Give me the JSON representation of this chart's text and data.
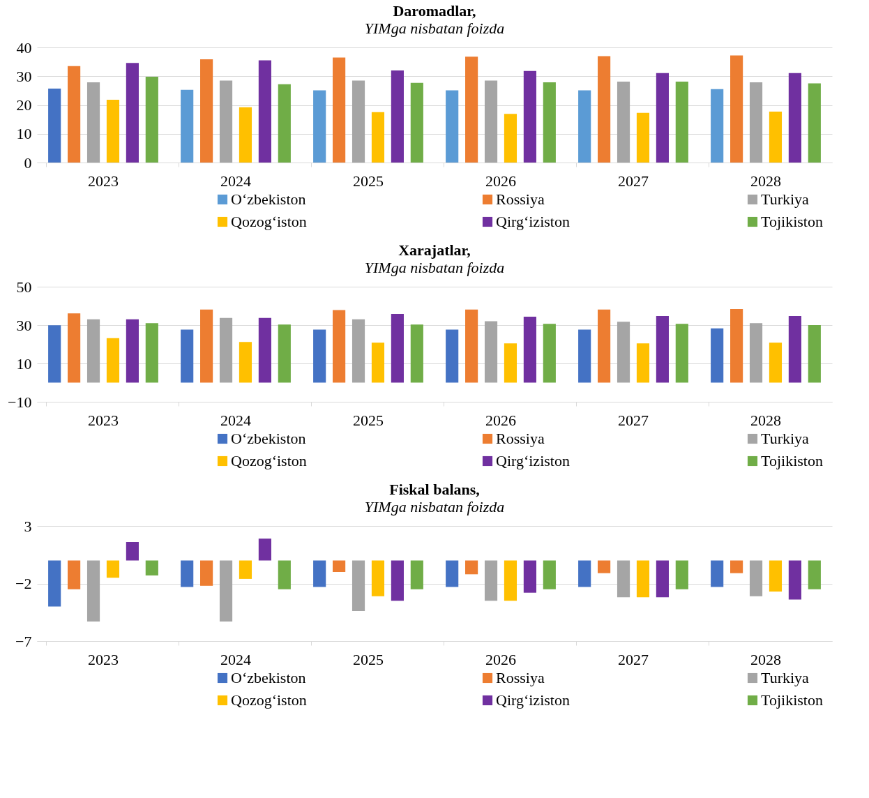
{
  "chart_data": [
    {
      "type": "bar",
      "title": "Daromadlar,",
      "subtitle": "YIMga nisbatan foizda",
      "categories": [
        "2023",
        "2024",
        "2025",
        "2026",
        "2027",
        "2028"
      ],
      "ylim": [
        0,
        40
      ],
      "yticks": [
        0,
        10,
        20,
        30,
        40
      ],
      "grid": "y",
      "legend": "bottom",
      "series": [
        {
          "name": "O‘zbekiston",
          "color": "#5b9bd5",
          "colors": [
            "#4472c4",
            "#5b9bd5",
            "#5b9bd5",
            "#5b9bd5",
            "#5b9bd5",
            "#5b9bd5"
          ],
          "values": [
            25.7,
            25.3,
            25.1,
            25.1,
            25.1,
            25.5
          ]
        },
        {
          "name": "Rossiya",
          "color": "#ed7d31",
          "values": [
            33.5,
            35.9,
            36.5,
            36.8,
            37.0,
            37.2
          ]
        },
        {
          "name": "Turkiya",
          "color": "#a5a5a5",
          "values": [
            27.9,
            28.5,
            28.5,
            28.5,
            28.1,
            27.9
          ]
        },
        {
          "name": "Qozog‘iston",
          "color": "#ffc000",
          "values": [
            21.8,
            19.2,
            17.5,
            16.9,
            17.3,
            17.7
          ]
        },
        {
          "name": "Qirg‘iziston",
          "color": "#7030a0",
          "values": [
            34.6,
            35.5,
            32.0,
            31.8,
            31.1,
            31.1
          ]
        },
        {
          "name": "Tojikiston",
          "color": "#70ad47",
          "values": [
            29.8,
            27.2,
            27.7,
            27.9,
            28.1,
            27.5
          ]
        }
      ]
    },
    {
      "type": "bar",
      "title": "Xarajatlar,",
      "subtitle": "YIMga nisbatan foizda",
      "categories": [
        "2023",
        "2024",
        "2025",
        "2026",
        "2027",
        "2028"
      ],
      "ylim": [
        -10,
        50
      ],
      "yticks": [
        -10,
        10,
        30,
        50
      ],
      "grid": "y",
      "legend": "bottom",
      "series": [
        {
          "name": "O‘zbekiston",
          "color": "#4472c4",
          "values": [
            29.9,
            27.6,
            27.6,
            27.6,
            27.6,
            28.3
          ]
        },
        {
          "name": "Rossiya",
          "color": "#ed7d31",
          "values": [
            36.1,
            38.1,
            37.8,
            38.1,
            38.1,
            38.4
          ]
        },
        {
          "name": "Turkiya",
          "color": "#a5a5a5",
          "values": [
            33.0,
            33.7,
            33.0,
            32.0,
            31.7,
            31.0
          ]
        },
        {
          "name": "Qozog‘iston",
          "color": "#ffc000",
          "values": [
            23.2,
            21.2,
            20.8,
            20.5,
            20.5,
            20.8
          ]
        },
        {
          "name": "Qirg‘iziston",
          "color": "#7030a0",
          "values": [
            33.0,
            33.7,
            35.8,
            34.4,
            34.7,
            34.7
          ]
        },
        {
          "name": "Tojikiston",
          "color": "#70ad47",
          "values": [
            31.0,
            30.3,
            30.3,
            30.6,
            30.6,
            30.0
          ]
        }
      ]
    },
    {
      "type": "bar",
      "title": "Fiskal balans,",
      "subtitle": "YIMga nisbatan foizda",
      "categories": [
        "2023",
        "2024",
        "2025",
        "2026",
        "2027",
        "2028"
      ],
      "ylim": [
        -7,
        3
      ],
      "yticks": [
        -7,
        -2,
        3
      ],
      "grid": "y",
      "legend": "bottom",
      "series": [
        {
          "name": "O‘zbekiston",
          "color": "#4472c4",
          "values": [
            -4.0,
            -2.3,
            -2.3,
            -2.3,
            -2.3,
            -2.3
          ]
        },
        {
          "name": "Rossiya",
          "color": "#ed7d31",
          "values": [
            -2.5,
            -2.2,
            -1.0,
            -1.2,
            -1.1,
            -1.1
          ]
        },
        {
          "name": "Turkiya",
          "color": "#a5a5a5",
          "values": [
            -5.3,
            -5.3,
            -4.4,
            -3.5,
            -3.2,
            -3.1
          ]
        },
        {
          "name": "Qozog‘iston",
          "color": "#ffc000",
          "values": [
            -1.5,
            -1.6,
            -3.1,
            -3.5,
            -3.2,
            -2.7
          ]
        },
        {
          "name": "Qirg‘iziston",
          "color": "#7030a0",
          "values": [
            1.6,
            1.9,
            -3.5,
            -2.8,
            -3.2,
            -3.4
          ]
        },
        {
          "name": "Tojikiston",
          "color": "#70ad47",
          "values": [
            -1.3,
            -2.5,
            -2.5,
            -2.5,
            -2.5,
            -2.5
          ]
        }
      ]
    }
  ]
}
